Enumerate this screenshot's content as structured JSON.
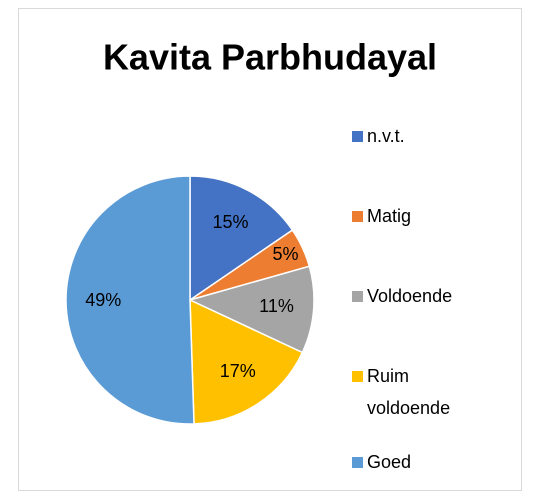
{
  "chart_data": {
    "type": "pie",
    "title": "Kavita Parbhudayal",
    "categories": [
      "n.v.t.",
      "Matig",
      "Voldoende",
      "Ruim voldoende",
      "Goed"
    ],
    "values": [
      15,
      5,
      11,
      17,
      49
    ],
    "value_labels": [
      "15%",
      "5%",
      "11%",
      "17%",
      "49%"
    ],
    "colors": [
      "#4472c4",
      "#ed7d31",
      "#a5a5a5",
      "#ffc000",
      "#5b9bd5"
    ],
    "legend": "right"
  }
}
